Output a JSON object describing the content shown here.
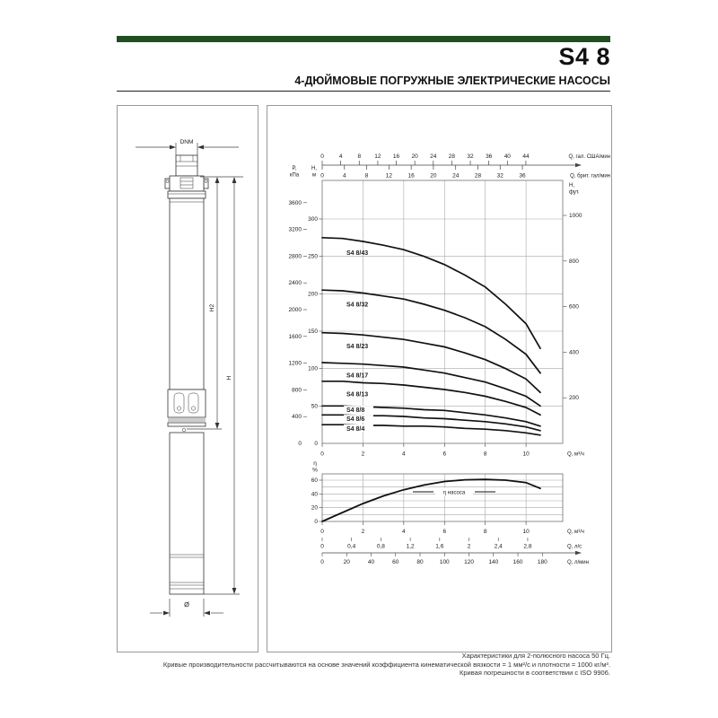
{
  "header": {
    "model": "S4 8",
    "subtitle": "4-ДЮЙМОВЫЕ ПОГРУЖНЫЕ ЭЛЕКТРИЧЕСКИЕ НАСОСЫ",
    "accent_color": "#1f4e20"
  },
  "drawing": {
    "labels": {
      "dnm": "DNM",
      "h2": "H2",
      "h": "H",
      "diameter": "Ø"
    }
  },
  "chart_data": [
    {
      "type": "line",
      "title": "S4 8 head-flow performance curves",
      "xlabel": "Q, м³/ч",
      "xlim": [
        0,
        11.8
      ],
      "x_ticks": [
        0,
        2,
        4,
        6,
        8,
        10
      ],
      "grid": true,
      "left_axes": [
        {
          "label": "P, кПа",
          "ticks": [
            0,
            400,
            800,
            1200,
            1600,
            2000,
            2400,
            2800,
            3200,
            3600
          ]
        },
        {
          "label": "H, м",
          "ticks": [
            0,
            50,
            100,
            150,
            200,
            250,
            300
          ],
          "ylim": [
            0,
            350
          ]
        }
      ],
      "right_axis": {
        "label": "H, фут.",
        "ticks": [
          200,
          400,
          600,
          800,
          1000
        ]
      },
      "top_axes": [
        {
          "label": "Q, гал. США/мин",
          "ticks": [
            0,
            4,
            8,
            12,
            16,
            20,
            24,
            28,
            32,
            36,
            40,
            44
          ],
          "to_m3h": 0.2271
        },
        {
          "label": "Q, брит. гал/мин",
          "ticks": [
            0,
            4,
            8,
            12,
            16,
            20,
            24,
            28,
            32,
            36
          ],
          "to_m3h": 0.2728
        }
      ],
      "x": [
        0,
        1,
        2,
        3,
        4,
        5,
        6,
        7,
        8,
        9,
        10,
        10.7
      ],
      "series": [
        {
          "name": "S4 8/43",
          "values": [
            275,
            274,
            270,
            265,
            259,
            250,
            239,
            225,
            209,
            186,
            160,
            127
          ]
        },
        {
          "name": "S4 8/32",
          "values": [
            205,
            204,
            201,
            197,
            193,
            186,
            178,
            168,
            156,
            139,
            119,
            94
          ]
        },
        {
          "name": "S4 8/23",
          "values": [
            148,
            147,
            145,
            142,
            139,
            134,
            129,
            121,
            112,
            100,
            86,
            68
          ]
        },
        {
          "name": "S4 8/17",
          "values": [
            108,
            107,
            106,
            104,
            102,
            98,
            94,
            88,
            82,
            73,
            63,
            50
          ]
        },
        {
          "name": "S4 8/13",
          "values": [
            83,
            83,
            81,
            80,
            78,
            75,
            72,
            68,
            63,
            56,
            48,
            38
          ]
        },
        {
          "name": "S4 8/8",
          "values": [
            50,
            50,
            49,
            48,
            47,
            45,
            44,
            41,
            38,
            34,
            29,
            23
          ]
        },
        {
          "name": "S4 8/6",
          "values": [
            38,
            38,
            37,
            37,
            36,
            34,
            33,
            31,
            29,
            26,
            22,
            17
          ]
        },
        {
          "name": "S4 8/4",
          "values": [
            25,
            25,
            24,
            24,
            23,
            23,
            22,
            20,
            19,
            17,
            14,
            11
          ]
        }
      ]
    },
    {
      "type": "line",
      "title": "Pump efficiency curve",
      "ylabel": "η %",
      "curve_label": "η насоса",
      "ylim": [
        0,
        69
      ],
      "y_ticks": [
        0,
        20,
        40,
        60
      ],
      "grid_step": 10,
      "x": [
        0,
        1,
        2,
        3,
        4,
        5,
        6,
        7,
        8,
        9,
        10,
        10.7
      ],
      "values": [
        0,
        13,
        26,
        37,
        46,
        53,
        58,
        60.5,
        61,
        60,
        56.5,
        48
      ],
      "x_axes": [
        {
          "label": "Q, м³/ч",
          "ticks": [
            0,
            2,
            4,
            6,
            8,
            10
          ],
          "to_m3h": 1,
          "format": "int"
        },
        {
          "label": "Q, л/с",
          "ticks": [
            0,
            0.4,
            0.8,
            1.2,
            1.6,
            2,
            2.4,
            2.8
          ],
          "to_m3h": 3.6,
          "format": "comma"
        },
        {
          "label": "Q, л/мин",
          "ticks": [
            0,
            20,
            40,
            60,
            80,
            100,
            120,
            140,
            160,
            180
          ],
          "to_m3h": 0.06,
          "format": "int"
        }
      ]
    }
  ],
  "footer": {
    "lines": [
      "Характеристики для 2-полюсного насоса 50 Гц.",
      "Кривые производительности рассчитываются на основе значений коэффициента кинематической вязкости = 1 мм²/с и плотности = 1000 кг/м³.",
      "Кривая погрешности в соответствии с ISO 9906."
    ]
  }
}
